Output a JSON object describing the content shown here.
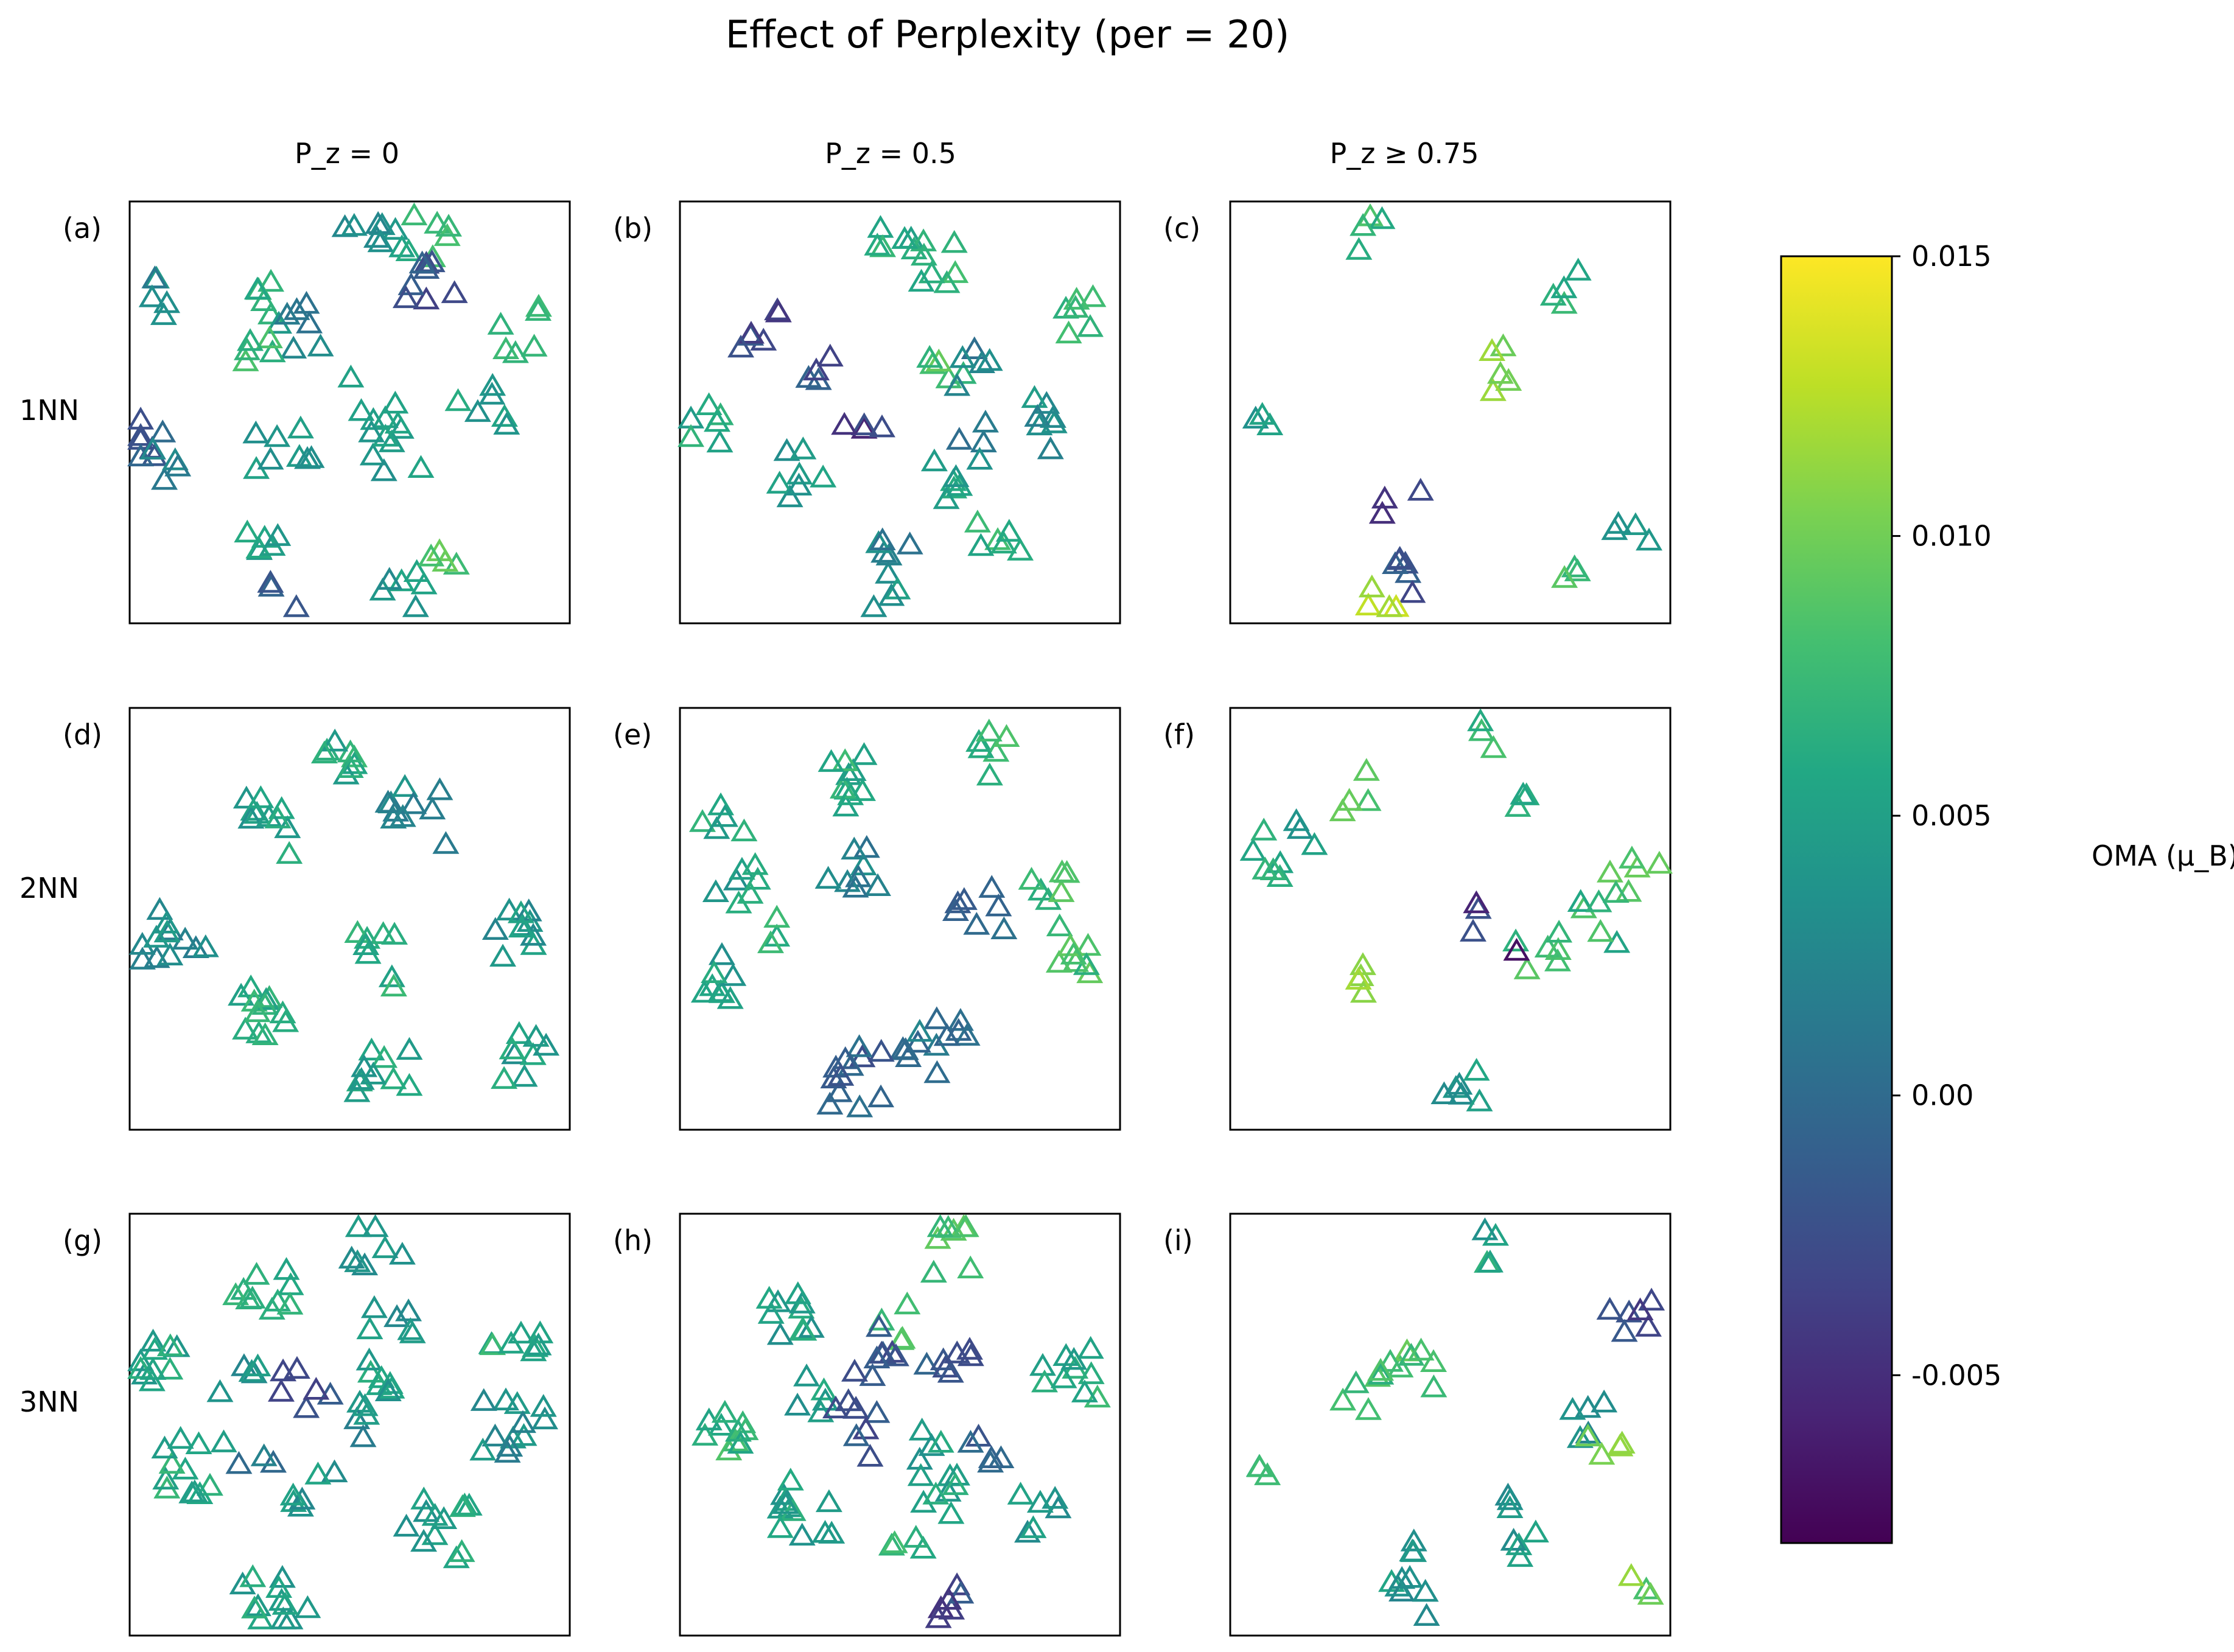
{
  "chart_data": {
    "type": "scatter",
    "title": "Effect of Perplexity (per = 20)",
    "marker": "open-triangle",
    "columns": [
      "P_z = 0",
      "P_z = 0.5",
      "P_z ≥ 0.75"
    ],
    "rows": [
      "1NN",
      "2NN",
      "3NN"
    ],
    "axes_ticks": false,
    "colorbar": {
      "label": "OMA (μ_B)",
      "colormap": "viridis",
      "range": [
        -0.008,
        0.015
      ],
      "ticks": [
        -0.005,
        0.0,
        0.005,
        0.01,
        0.015
      ],
      "tick_labels": [
        "-0.005",
        "0.00",
        "0.005",
        "0.010",
        "0.015"
      ]
    },
    "panels": [
      {
        "id": "a",
        "label": "(a)",
        "row": "1NN",
        "column": "P_z = 0",
        "xlim": [
          0,
          100
        ],
        "ylim": [
          0,
          100
        ],
        "clusters": [
          [
            55,
            92,
            7,
            0.004
          ],
          [
            67,
            91,
            7,
            0.007
          ],
          [
            68,
            82,
            8,
            -0.002
          ],
          [
            8,
            78,
            5,
            0.003
          ],
          [
            32,
            75,
            6,
            0.006
          ],
          [
            38,
            70,
            6,
            0.002
          ],
          [
            29,
            64,
            5,
            0.008
          ],
          [
            90,
            69,
            6,
            0.006
          ],
          [
            55,
            53,
            5,
            0.005
          ],
          [
            80,
            52,
            6,
            0.005
          ],
          [
            4,
            45,
            7,
            -0.001
          ],
          [
            10,
            38,
            4,
            0.002
          ],
          [
            35,
            41,
            8,
            0.004
          ],
          [
            60,
            42,
            8,
            0.005
          ],
          [
            32,
            16,
            6,
            0.005
          ],
          [
            63,
            7,
            6,
            0.004
          ],
          [
            70,
            18,
            4,
            0.008
          ],
          [
            36,
            6,
            3,
            -0.001
          ]
        ]
      },
      {
        "id": "b",
        "label": "(b)",
        "row": "1NN",
        "column": "P_z = 0.5",
        "xlim": [
          0,
          100
        ],
        "ylim": [
          0,
          100
        ],
        "clusters": [
          [
            50,
            90,
            7,
            0.006
          ],
          [
            58,
            86,
            6,
            0.007
          ],
          [
            18,
            69,
            6,
            -0.003
          ],
          [
            30,
            62,
            4,
            -0.002
          ],
          [
            92,
            72,
            6,
            0.007
          ],
          [
            62,
            62,
            5,
            0.008
          ],
          [
            68,
            60,
            5,
            0.002
          ],
          [
            6,
            48,
            6,
            0.006
          ],
          [
            42,
            49,
            4,
            -0.004
          ],
          [
            65,
            46,
            3,
            0.001
          ],
          [
            82,
            47,
            7,
            0.003
          ],
          [
            28,
            35,
            7,
            0.004
          ],
          [
            63,
            34,
            7,
            0.005
          ],
          [
            49,
            16,
            6,
            0.002
          ],
          [
            73,
            20,
            6,
            0.007
          ],
          [
            48,
            4,
            3,
            0.004
          ]
        ]
      },
      {
        "id": "c",
        "label": "(c)",
        "row": "1NN",
        "column": "P_z ≥ 0.75",
        "xlim": [
          0,
          100
        ],
        "ylim": [
          0,
          100
        ],
        "clusters": [
          [
            30,
            92,
            4,
            0.007
          ],
          [
            75,
            80,
            4,
            0.007
          ],
          [
            59,
            60,
            5,
            0.011
          ],
          [
            6,
            47,
            3,
            0.005
          ],
          [
            39,
            27,
            3,
            -0.004
          ],
          [
            42,
            10,
            6,
            -0.002
          ],
          [
            33,
            4,
            4,
            0.012
          ],
          [
            78,
            10,
            3,
            0.008
          ],
          [
            92,
            22,
            4,
            0.004
          ]
        ]
      },
      {
        "id": "d",
        "label": "(d)",
        "row": "2NN",
        "column": "P_z = 0",
        "xlim": [
          0,
          100
        ],
        "ylim": [
          0,
          100
        ],
        "clusters": [
          [
            45,
            90,
            8,
            0.006
          ],
          [
            33,
            72,
            10,
            0.005
          ],
          [
            65,
            74,
            10,
            0.003
          ],
          [
            10,
            45,
            12,
            0.003
          ],
          [
            30,
            27,
            12,
            0.006
          ],
          [
            58,
            40,
            8,
            0.006
          ],
          [
            85,
            45,
            10,
            0.004
          ],
          [
            58,
            14,
            10,
            0.005
          ],
          [
            90,
            18,
            8,
            0.005
          ]
        ]
      },
      {
        "id": "e",
        "label": "(e)",
        "row": "2NN",
        "column": "P_z = 0.5",
        "xlim": [
          0,
          100
        ],
        "ylim": [
          0,
          100
        ],
        "clusters": [
          [
            36,
            82,
            10,
            0.006
          ],
          [
            70,
            89,
            6,
            0.007
          ],
          [
            10,
            73,
            5,
            0.006
          ],
          [
            13,
            57,
            7,
            0.005
          ],
          [
            40,
            63,
            8,
            0.002
          ],
          [
            68,
            53,
            7,
            -0.001
          ],
          [
            84,
            55,
            6,
            0.008
          ],
          [
            10,
            35,
            8,
            0.005
          ],
          [
            24,
            47,
            3,
            0.006
          ],
          [
            88,
            42,
            8,
            0.008
          ],
          [
            58,
            20,
            12,
            0.001
          ],
          [
            40,
            12,
            12,
            -0.001
          ]
        ]
      },
      {
        "id": "f",
        "label": "(f)",
        "row": "2NN",
        "column": "P_z ≥ 0.75",
        "xlim": [
          0,
          100
        ],
        "ylim": [
          0,
          100
        ],
        "clusters": [
          [
            60,
            94,
            3,
            0.007
          ],
          [
            65,
            77,
            3,
            0.005
          ],
          [
            28,
            80,
            4,
            0.008
          ],
          [
            7,
            65,
            6,
            0.006
          ],
          [
            18,
            71,
            3,
            0.004
          ],
          [
            92,
            60,
            6,
            0.008
          ],
          [
            52,
            49,
            3,
            -0.004
          ],
          [
            84,
            49,
            5,
            0.007
          ],
          [
            70,
            42,
            6,
            0.008
          ],
          [
            31,
            35,
            4,
            0.011
          ],
          [
            64,
            43,
            1,
            -0.006
          ],
          [
            52,
            8,
            6,
            0.004
          ]
        ]
      },
      {
        "id": "g",
        "label": "(g)",
        "row": "3NN",
        "column": "P_z = 0",
        "xlim": [
          0,
          100
        ],
        "ylim": [
          0,
          100
        ],
        "clusters": [
          [
            56,
            92,
            7,
            0.003
          ],
          [
            30,
            80,
            10,
            0.007
          ],
          [
            6,
            66,
            10,
            0.005
          ],
          [
            60,
            77,
            6,
            0.004
          ],
          [
            59,
            63,
            6,
            0.005
          ],
          [
            25,
            60,
            5,
            0.004
          ],
          [
            40,
            59,
            6,
            -0.002
          ],
          [
            57,
            52,
            6,
            0.003
          ],
          [
            88,
            67,
            8,
            0.006
          ],
          [
            87,
            48,
            12,
            0.003
          ],
          [
            15,
            40,
            12,
            0.006
          ],
          [
            29,
            41,
            3,
            0.001
          ],
          [
            41,
            35,
            6,
            0.004
          ],
          [
            70,
            25,
            12,
            0.005
          ],
          [
            33,
            8,
            12,
            0.005
          ]
        ]
      },
      {
        "id": "h",
        "label": "(h)",
        "row": "3NN",
        "column": "P_z = 0.5",
        "xlim": [
          0,
          100
        ],
        "ylim": [
          0,
          100
        ],
        "clusters": [
          [
            63,
            92,
            8,
            0.008
          ],
          [
            27,
            74,
            10,
            0.005
          ],
          [
            49,
            74,
            4,
            0.008
          ],
          [
            50,
            67,
            8,
            -0.002
          ],
          [
            61,
            62,
            6,
            -0.003
          ],
          [
            28,
            57,
            5,
            0.005
          ],
          [
            40,
            57,
            5,
            -0.002
          ],
          [
            40,
            46,
            3,
            -0.002
          ],
          [
            89,
            62,
            10,
            0.006
          ],
          [
            10,
            47,
            10,
            0.007
          ],
          [
            60,
            43,
            6,
            0.005
          ],
          [
            70,
            46,
            5,
            -0.001
          ],
          [
            28,
            30,
            12,
            0.005
          ],
          [
            58,
            33,
            6,
            0.005
          ],
          [
            83,
            28,
            6,
            0.004
          ],
          [
            52,
            19,
            4,
            0.007
          ],
          [
            62,
            8,
            6,
            -0.003
          ]
        ]
      },
      {
        "id": "i",
        "label": "(i)",
        "row": "3NN",
        "column": "P_z ≥ 0.75",
        "xlim": [
          0,
          100
        ],
        "ylim": [
          0,
          100
        ],
        "clusters": [
          [
            56,
            93,
            4,
            0.005
          ],
          [
            90,
            77,
            6,
            -0.003
          ],
          [
            40,
            64,
            10,
            0.008
          ],
          [
            28,
            57,
            3,
            0.007
          ],
          [
            80,
            50,
            5,
            0.004
          ],
          [
            86,
            43,
            4,
            0.01
          ],
          [
            6,
            42,
            3,
            0.007
          ],
          [
            62,
            30,
            3,
            0.004
          ],
          [
            67,
            22,
            4,
            0.004
          ],
          [
            38,
            18,
            4,
            0.003
          ],
          [
            40,
            8,
            6,
            0.004
          ],
          [
            94,
            11,
            3,
            0.01
          ]
        ]
      }
    ]
  }
}
